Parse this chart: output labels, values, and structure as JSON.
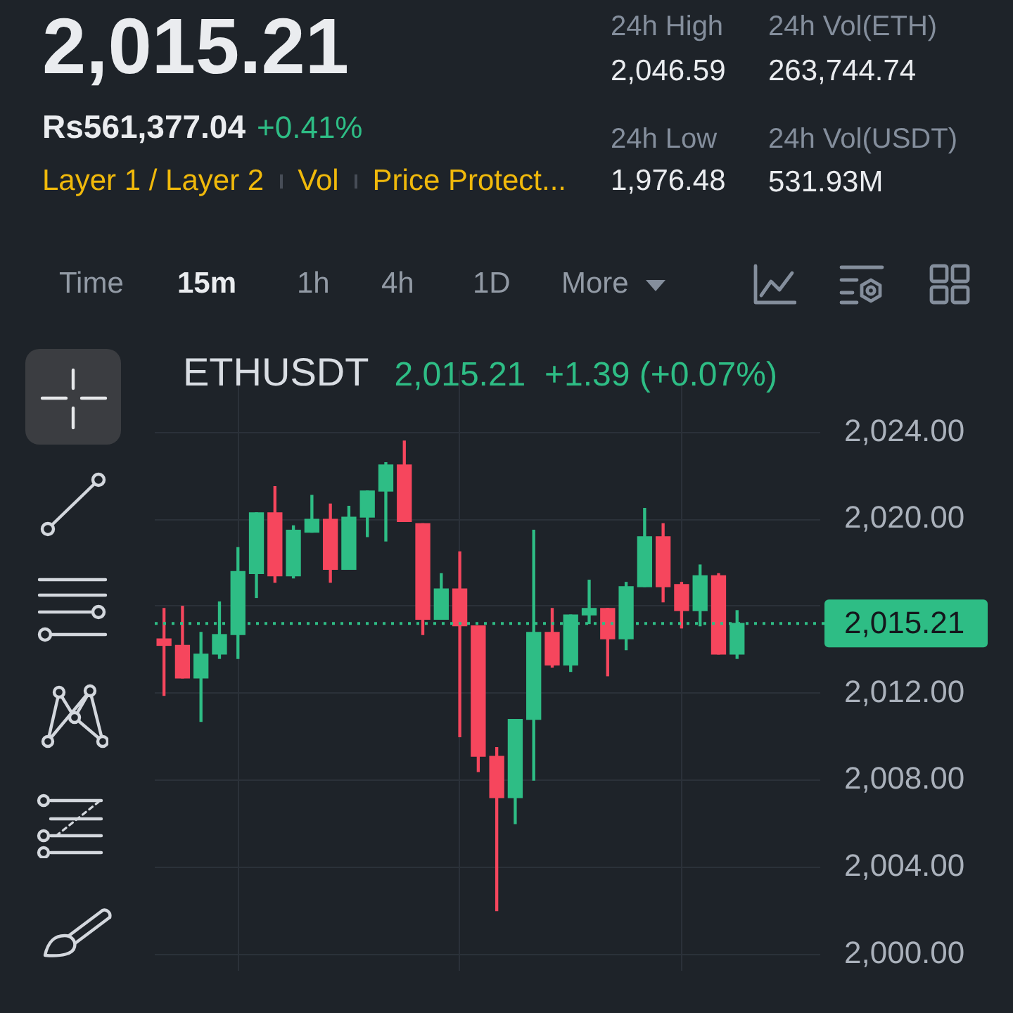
{
  "chart_data": {
    "type": "candlestick",
    "title": "ETHUSDT",
    "subtitle": "2,015.21  +1.39 (+0.07%)",
    "categories": [
      null,
      null,
      null,
      null,
      null,
      null,
      null,
      null,
      null,
      null,
      null,
      null,
      null,
      null,
      null,
      null,
      null,
      null,
      null,
      null,
      null,
      null,
      null,
      null,
      null,
      null,
      null,
      null,
      null,
      null,
      null,
      null
    ],
    "ohlc": [
      [
        2014.5,
        2015.9,
        2011.9,
        2014.2
      ],
      [
        2014.2,
        2016.0,
        2012.7,
        2012.7
      ],
      [
        2012.7,
        2014.8,
        2010.7,
        2013.8
      ],
      [
        2013.8,
        2016.2,
        2013.6,
        2014.7
      ],
      [
        2014.7,
        2018.7,
        2013.6,
        2017.6
      ],
      [
        2017.5,
        2020.3,
        2016.4,
        2020.3
      ],
      [
        2020.3,
        2021.5,
        2017.1,
        2017.4
      ],
      [
        2017.4,
        2019.7,
        2017.3,
        2019.5
      ],
      [
        2019.4,
        2021.1,
        2019.4,
        2020.0
      ],
      [
        2020.0,
        2020.7,
        2017.1,
        2017.7
      ],
      [
        2017.7,
        2020.6,
        2017.7,
        2020.1
      ],
      [
        2020.1,
        2021.3,
        2019.2,
        2021.3
      ],
      [
        2021.3,
        2022.6,
        2019.0,
        2022.5
      ],
      [
        2022.5,
        2023.6,
        2019.9,
        2019.9
      ],
      [
        2019.8,
        2019.8,
        2014.7,
        2015.4
      ],
      [
        2015.4,
        2017.5,
        2015.4,
        2016.8
      ],
      [
        2016.8,
        2018.5,
        2010.0,
        2015.1
      ],
      [
        2015.1,
        2015.1,
        2008.4,
        2009.1
      ],
      [
        2009.1,
        2009.5,
        2002.0,
        2007.2
      ],
      [
        2007.2,
        2010.8,
        2006.0,
        2010.8
      ],
      [
        2010.8,
        2019.5,
        2008.0,
        2014.8
      ],
      [
        2014.8,
        2015.9,
        2013.2,
        2013.3
      ],
      [
        2013.3,
        2015.6,
        2013.0,
        2015.6
      ],
      [
        2015.6,
        2017.2,
        2015.2,
        2015.9
      ],
      [
        2015.9,
        2015.9,
        2012.8,
        2014.5
      ],
      [
        2014.5,
        2017.1,
        2014.0,
        2016.9
      ],
      [
        2016.9,
        2020.5,
        2016.9,
        2019.2
      ],
      [
        2019.2,
        2019.8,
        2016.2,
        2016.9
      ],
      [
        2017.0,
        2017.1,
        2015.0,
        2015.8
      ],
      [
        2015.8,
        2017.9,
        2015.1,
        2017.4
      ],
      [
        2017.4,
        2017.5,
        2013.8,
        2013.8
      ],
      [
        2013.8,
        2015.8,
        2013.6,
        2015.21
      ]
    ],
    "colors": [
      "#f6465d",
      "#f6465d",
      "#2ebd85",
      "#2ebd85",
      "#2ebd85",
      "#2ebd85",
      "#f6465d",
      "#2ebd85",
      "#2ebd85",
      "#f6465d",
      "#2ebd85",
      "#2ebd85",
      "#2ebd85",
      "#f6465d",
      "#f6465d",
      "#2ebd85",
      "#f6465d",
      "#f6465d",
      "#f6465d",
      "#2ebd85",
      "#2ebd85",
      "#f6465d",
      "#2ebd85",
      "#2ebd85",
      "#f6465d",
      "#2ebd85",
      "#2ebd85",
      "#f6465d",
      "#f6465d",
      "#2ebd85",
      "#f6465d",
      "#2ebd85"
    ],
    "ylim": [
      1999.25,
      2026.85
    ],
    "yticks": [
      {
        "value": 2000,
        "label": "2,000.00"
      },
      {
        "value": 2004,
        "label": "2,004.00"
      },
      {
        "value": 2008,
        "label": "2,008.00"
      },
      {
        "value": 2012,
        "label": "2,012.00"
      },
      {
        "value": 2016,
        "label": null
      },
      {
        "value": 2020,
        "label": "2,020.00"
      },
      {
        "value": 2024,
        "label": "2,024.00"
      }
    ],
    "grid": true,
    "tick_labels": "y",
    "ref_lines": [
      {
        "axis": "y",
        "value": 2015.21,
        "label": "2,015.21",
        "color": "#2ebd85",
        "line_style": "dotted"
      }
    ],
    "annotations": [
      "2,015.21",
      "Rs561,377.04",
      "+0.41%",
      "Layer 1 / Layer 2",
      "Vol",
      "Price Protect...",
      "24h High",
      "2,046.59",
      "24h Vol(ETH)",
      "263,744.74",
      "24h Low",
      "1,976.48",
      "24h Vol(USDT)",
      "531.93M",
      "Time",
      "15m",
      "1h",
      "4h",
      "1D",
      "More"
    ]
  }
}
